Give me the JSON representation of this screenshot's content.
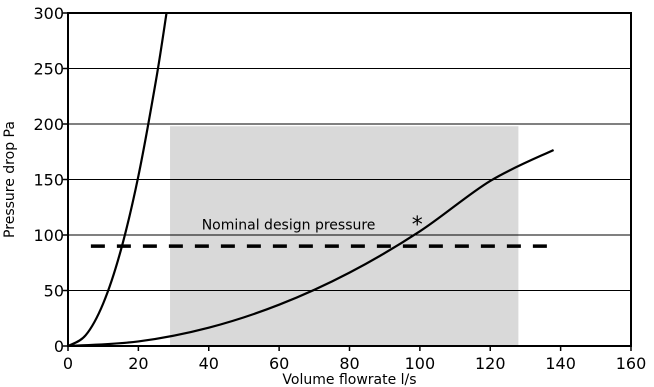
{
  "chart_data": {
    "type": "line",
    "title": "",
    "xlabel": "Volume flowrate l/s",
    "ylabel": "Pressure drop Pa",
    "xlim": [
      0,
      160
    ],
    "ylim": [
      0,
      300
    ],
    "x_ticks": [
      0,
      20,
      40,
      60,
      80,
      100,
      120,
      140,
      160
    ],
    "x_tick_labels": [
      "0",
      "20",
      "40",
      "60",
      "80",
      "100",
      "120",
      "140",
      "160"
    ],
    "y_ticks": [
      0,
      50,
      100,
      150,
      200,
      250,
      300
    ],
    "y_tick_labels": [
      "0",
      "50",
      "100",
      "150",
      "200",
      "250",
      "300"
    ],
    "grid": "horizontal",
    "legend": "none",
    "shaded_region": {
      "x": [
        29,
        128
      ],
      "y": [
        0,
        198
      ],
      "color": "#d9d9d9"
    },
    "series": [
      {
        "style": "solid",
        "color": "#000000",
        "x": [
          0,
          5,
          10,
          15,
          20,
          25,
          28
        ],
        "y": [
          0,
          9.6,
          38.3,
          86.1,
          153.1,
          239.2,
          300
        ]
      },
      {
        "style": "solid",
        "color": "#000000",
        "x": [
          0,
          20,
          40,
          60,
          80,
          100,
          120,
          138
        ],
        "y": [
          0,
          4.1,
          16.5,
          37.2,
          66.1,
          103.3,
          148.7,
          176.6
        ]
      },
      {
        "style": "dashed",
        "color": "#000000",
        "x": [
          6.5,
          138
        ],
        "y": [
          90,
          90
        ]
      }
    ],
    "annotations": [
      {
        "text": "Nominal design pressure",
        "x": 38,
        "y": 105
      },
      {
        "text": "*",
        "x": 96,
        "y": 110
      }
    ]
  }
}
